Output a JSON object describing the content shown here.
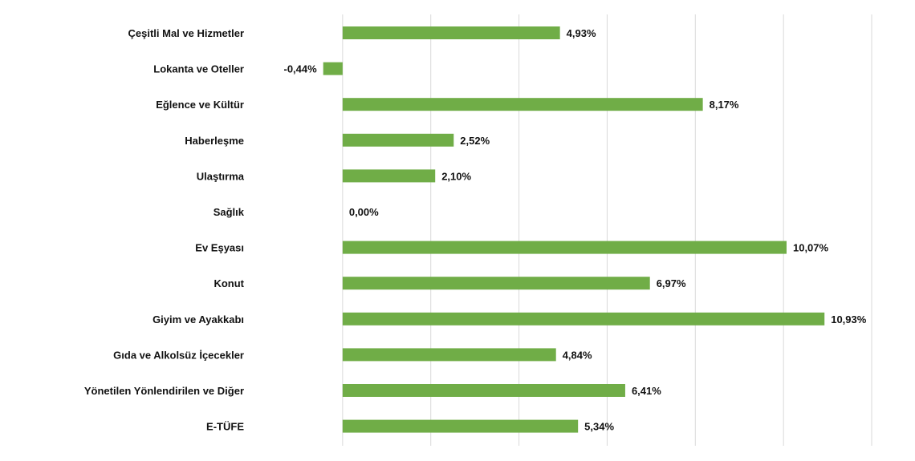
{
  "chart_data": {
    "type": "bar",
    "orientation": "horizontal",
    "title": "",
    "xlabel": "",
    "ylabel": "",
    "xlim": [
      -2,
      12
    ],
    "grid": "vertical",
    "legend": "none",
    "value_suffix": "%",
    "categories": [
      "Çeşitli Mal ve Hizmetler",
      "Lokanta ve Oteller",
      "Eğlence ve Kültür",
      "Haberleşme",
      "Ulaştırma",
      "Sağlık",
      "Ev Eşyası",
      "Konut",
      "Giyim ve Ayakkabı",
      "Gıda ve Alkolsüz İçecekler",
      "Yönetilen Yönlendirilen ve Diğer",
      "E-TÜFE"
    ],
    "values": [
      4.93,
      -0.44,
      8.17,
      2.52,
      2.1,
      0.0,
      10.07,
      6.97,
      10.93,
      4.84,
      6.41,
      5.34
    ],
    "value_labels": [
      "4,93%",
      "-0,44%",
      "8,17%",
      "2,52%",
      "2,10%",
      "0,00%",
      "10,07%",
      "6,97%",
      "10,93%",
      "4,84%",
      "6,41%",
      "5,34%"
    ],
    "bar_color": "#70ad47",
    "grid_color": "#d9d9d9"
  }
}
